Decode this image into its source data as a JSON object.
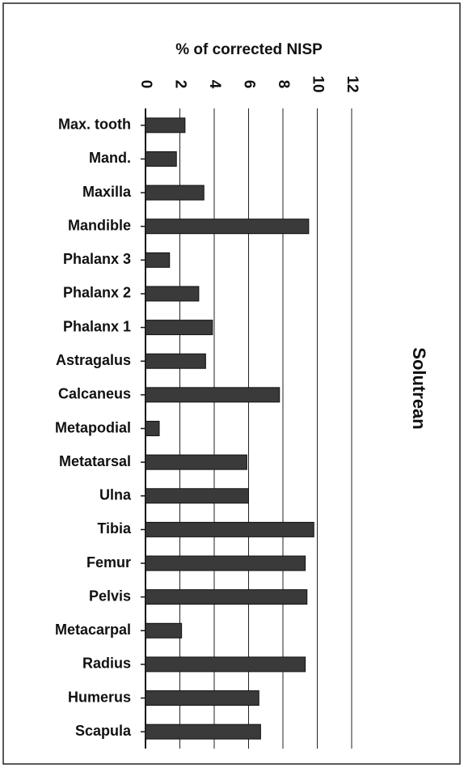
{
  "chart_data": {
    "type": "bar",
    "orientation": "horizontal",
    "title": "% of corrected NISP",
    "panel_label": "Solutrean",
    "categories": [
      "Max. tooth",
      "Mand.",
      "Maxilla",
      "Mandible",
      "Phalanx 3",
      "Phalanx 2",
      "Phalanx 1",
      "Astragalus",
      "Calcaneus",
      "Metapodial",
      "Metatarsal",
      "Ulna",
      "Tibia",
      "Femur",
      "Pelvis",
      "Metacarpal",
      "Radius",
      "Humerus",
      "Scapula"
    ],
    "values": [
      2.3,
      1.8,
      3.4,
      9.5,
      1.4,
      3.1,
      3.9,
      3.5,
      7.8,
      0.8,
      5.9,
      6.0,
      9.8,
      9.3,
      9.4,
      2.1,
      9.3,
      6.6,
      6.7
    ],
    "color": "#3a3a3a",
    "xlim": [
      0,
      12
    ],
    "xticks": [
      0,
      2,
      4,
      6,
      8,
      10,
      12
    ],
    "grid": true
  }
}
